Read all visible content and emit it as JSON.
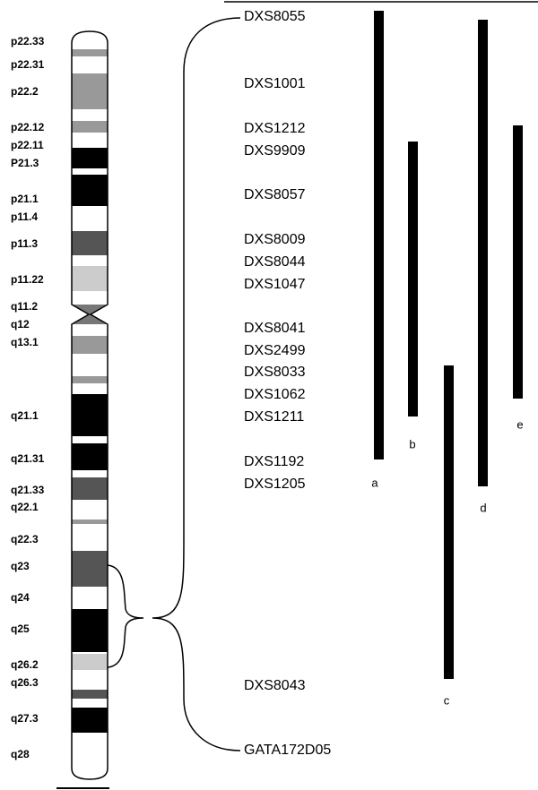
{
  "bands": [
    "p22.33",
    "p22.31",
    "p22.2",
    "p22.12",
    "p22.11",
    "P21.3",
    "p21.1",
    "p11.4",
    "p11.3",
    "p11.22",
    "q11.2",
    "q12",
    "q13.1",
    "q21.1",
    "q21.31",
    "q21.33",
    "q22.1",
    "q22.3",
    "q23",
    "q24",
    "q25",
    "q26.2",
    "q26.3",
    "q27.3",
    "q28"
  ],
  "markers": [
    "DXS8055",
    "DXS1001",
    "DXS1212",
    "DXS9909",
    "DXS8057",
    "DXS8009",
    "DXS8044",
    "DXS1047",
    "DXS8041",
    "DXS2499",
    "DXS8033",
    "DXS1062",
    "DXS1211",
    "DXS1192",
    "DXS1205",
    "DXS8043",
    "GATA172D05"
  ],
  "bars": [
    "a",
    "b",
    "c",
    "d",
    "e"
  ]
}
